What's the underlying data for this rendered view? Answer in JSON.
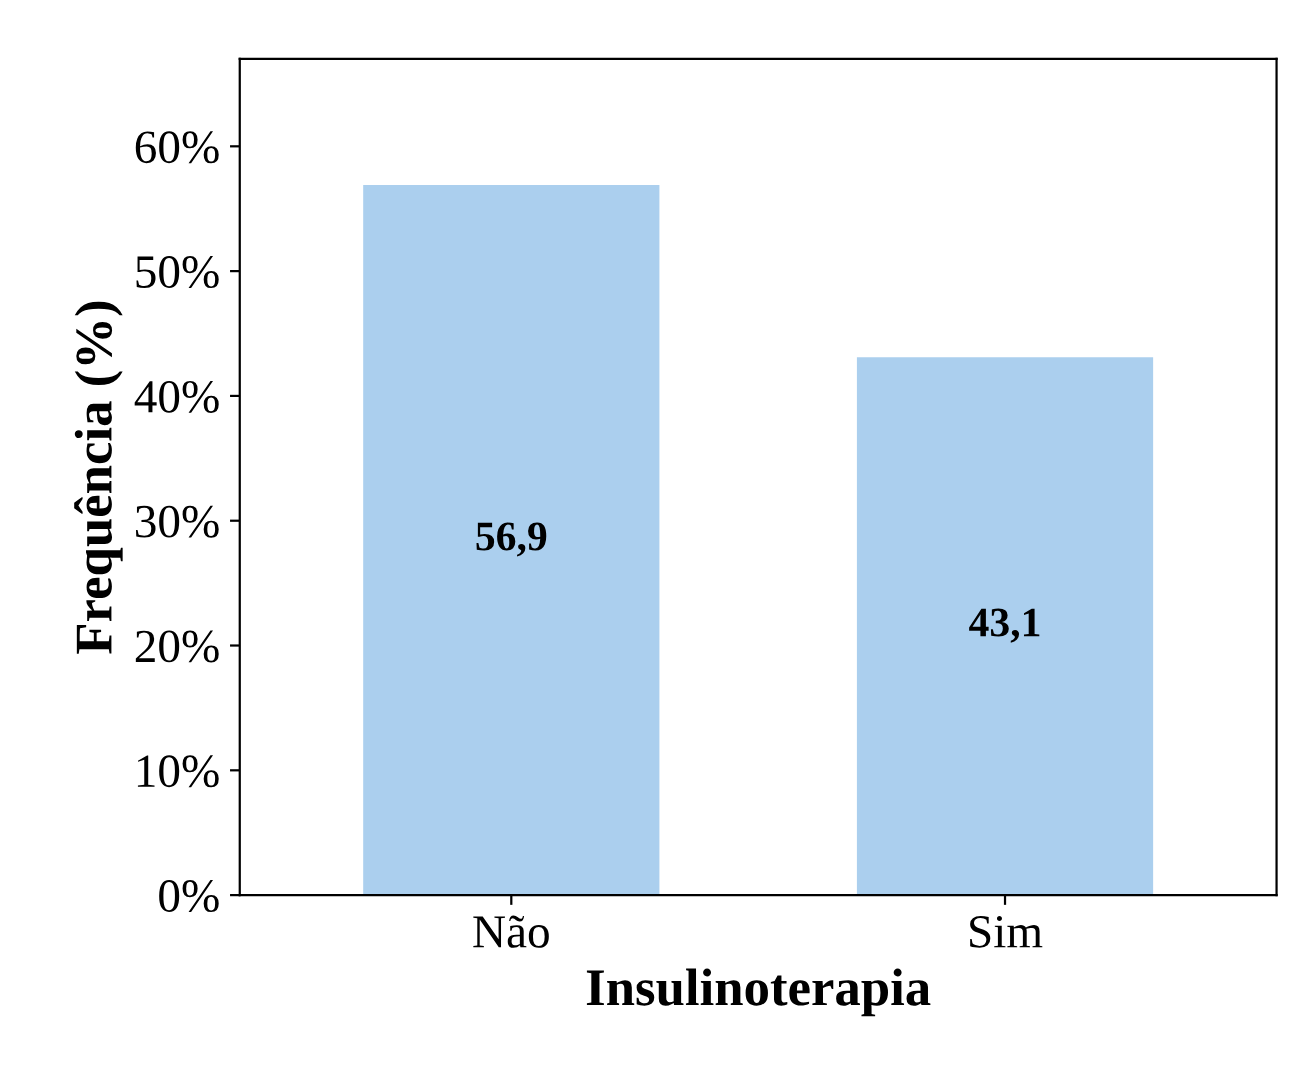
{
  "chart_data": {
    "type": "bar",
    "xlabel": "Insulinoterapia",
    "ylabel": "Frequência (%)",
    "categories": [
      "Não",
      "Sim"
    ],
    "values": [
      56.9,
      43.1
    ],
    "value_labels": [
      "56,9",
      "43,1"
    ],
    "color": "#abcfee",
    "ylim": [
      0,
      67
    ],
    "yticks": [
      {
        "value": 0,
        "label": "0%"
      },
      {
        "value": 10,
        "label": "10%"
      },
      {
        "value": 20,
        "label": "20%"
      },
      {
        "value": 30,
        "label": "30%"
      },
      {
        "value": 40,
        "label": "40%"
      },
      {
        "value": 50,
        "label": "50%"
      },
      {
        "value": 60,
        "label": "60%"
      }
    ],
    "grid": false,
    "legend": false
  }
}
